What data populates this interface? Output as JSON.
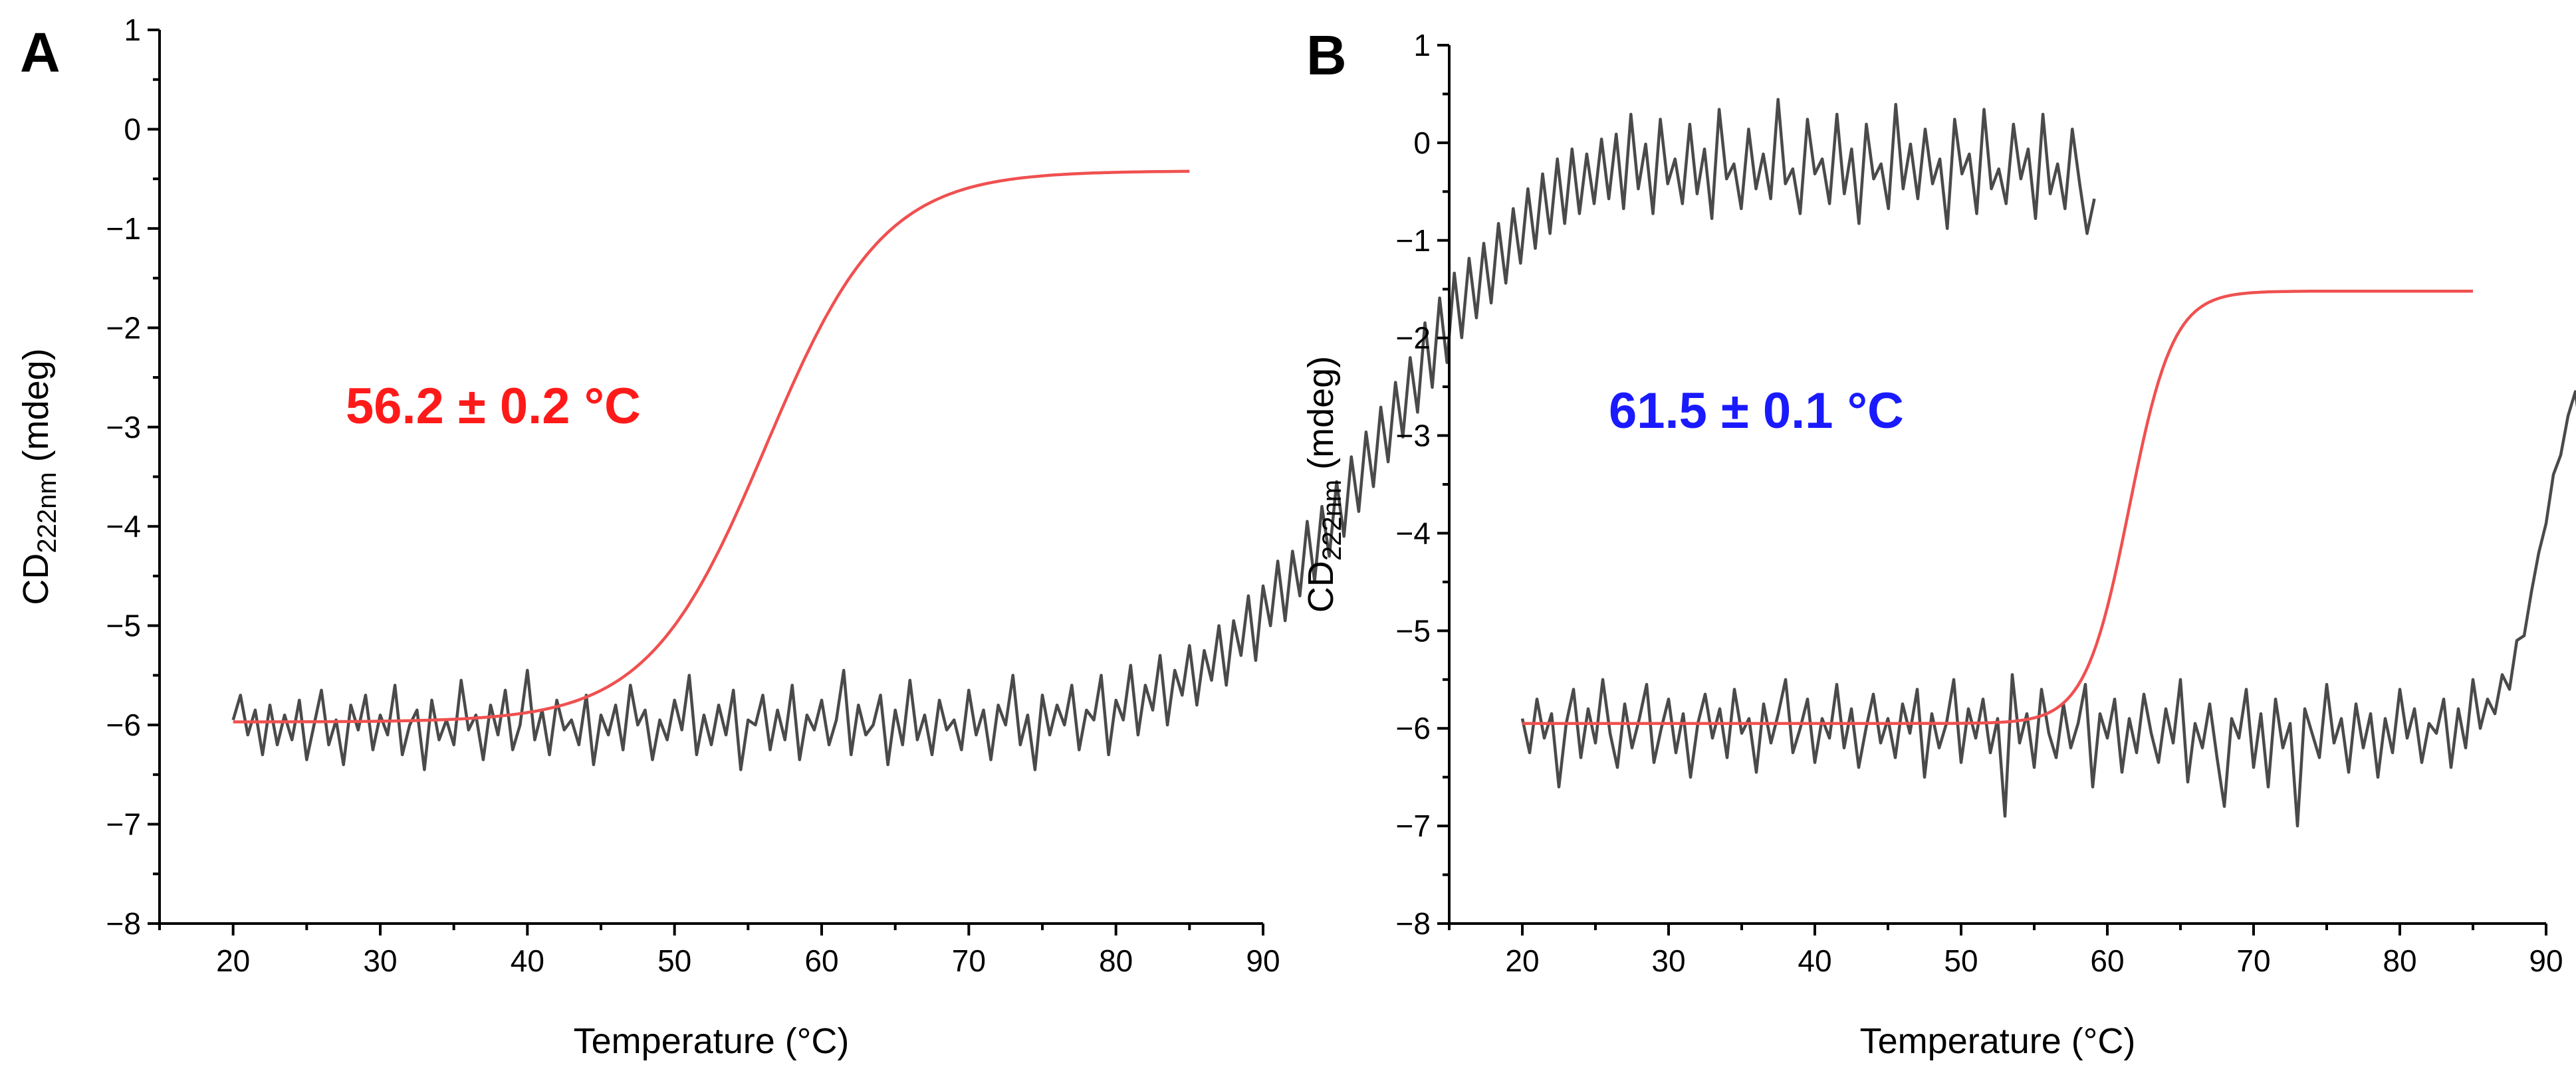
{
  "chart_data": [
    {
      "panel": "A",
      "type": "line",
      "xlabel": "Temperature (°C)",
      "ylabel_main": "CD",
      "ylabel_sub": "222nm",
      "ylabel_unit": " (mdeg)",
      "xlim": [
        15,
        90
      ],
      "ylim": [
        -8,
        1
      ],
      "xticks": [
        20,
        30,
        40,
        50,
        60,
        70,
        80,
        90
      ],
      "yticks": [
        1,
        0,
        -1,
        -2,
        -3,
        -4,
        -5,
        -6,
        -7,
        -8
      ],
      "ytick_labels": [
        "1",
        "0",
        "−1",
        "−2",
        "−3",
        "−4",
        "−5",
        "−6",
        "−7",
        "−8"
      ],
      "xtick_labels": [
        "20",
        "30",
        "40",
        "50",
        "60",
        "70",
        "80",
        "90"
      ],
      "annotation": "56.2 ± 0.2 °C",
      "annotation_color": "#ff1a1a",
      "series": [
        {
          "name": "measured CD",
          "color": "#4a4a4a",
          "x_start": 20,
          "x_step": 0.5,
          "values": [
            -5.95,
            -5.7,
            -6.1,
            -5.85,
            -6.3,
            -5.8,
            -6.2,
            -5.9,
            -6.15,
            -5.75,
            -6.35,
            -6.0,
            -5.65,
            -6.2,
            -5.95,
            -6.4,
            -5.8,
            -6.05,
            -5.7,
            -6.25,
            -5.9,
            -6.1,
            -5.6,
            -6.3,
            -6.0,
            -5.85,
            -6.45,
            -5.75,
            -6.15,
            -5.95,
            -6.2,
            -5.55,
            -6.05,
            -5.9,
            -6.35,
            -5.8,
            -6.1,
            -5.65,
            -6.25,
            -6.0,
            -5.45,
            -6.15,
            -5.85,
            -6.3,
            -5.75,
            -6.05,
            -5.95,
            -6.2,
            -5.7,
            -6.4,
            -5.9,
            -6.1,
            -5.8,
            -6.25,
            -5.6,
            -6.0,
            -5.85,
            -6.35,
            -5.95,
            -6.15,
            -5.75,
            -6.05,
            -5.5,
            -6.3,
            -5.9,
            -6.2,
            -5.8,
            -6.1,
            -5.65,
            -6.45,
            -5.95,
            -6.0,
            -5.7,
            -6.25,
            -5.85,
            -6.15,
            -5.6,
            -6.35,
            -5.9,
            -6.05,
            -5.75,
            -6.2,
            -5.95,
            -5.45,
            -6.3,
            -5.8,
            -6.1,
            -6.0,
            -5.7,
            -6.4,
            -5.85,
            -6.2,
            -5.55,
            -6.15,
            -5.9,
            -6.3,
            -5.75,
            -6.05,
            -5.95,
            -6.25,
            -5.65,
            -6.1,
            -5.85,
            -6.35,
            -5.8,
            -6.0,
            -5.5,
            -6.2,
            -5.9,
            -6.45,
            -5.7,
            -6.1,
            -5.8,
            -6.0,
            -5.6,
            -6.25,
            -5.85,
            -5.95,
            -5.5,
            -6.3,
            -5.75,
            -5.95,
            -5.4,
            -6.1,
            -5.6,
            -5.85,
            -5.3,
            -6.0,
            -5.45,
            -5.7,
            -5.2,
            -5.8,
            -5.25,
            -5.55,
            -5.0,
            -5.6,
            -4.95,
            -5.3,
            -4.7,
            -5.35,
            -4.6,
            -5.0,
            -4.35,
            -4.95,
            -4.25,
            -4.7,
            -3.95,
            -4.55,
            -3.8,
            -4.3,
            -3.55,
            -4.1,
            -3.3,
            -3.85,
            -3.05,
            -3.6,
            -2.8,
            -3.35,
            -2.55,
            -3.1,
            -2.3,
            -2.85,
            -1.95,
            -2.6,
            -1.7,
            -2.35,
            -1.45,
            -2.1,
            -1.3,
            -1.9,
            -1.15,
            -1.75,
            -0.95,
            -1.55,
            -0.8,
            -1.35,
            -0.6,
            -1.2,
            -0.45,
            -1.05,
            -0.3,
            -0.95,
            -0.2,
            -0.85,
            -0.25,
            -0.75,
            -0.1,
            -0.7,
            -0.05,
            -0.8,
            0.15,
            -0.6,
            -0.15,
            -0.85,
            0.1,
            -0.55,
            -0.3,
            -0.75,
            0.05,
            -0.65,
            -0.2,
            -0.9,
            0.2,
            -0.5,
            -0.35,
            -0.8,
            0.0,
            -0.6,
            -0.25,
            -0.7,
            0.3,
            -0.55,
            -0.4,
            -0.85,
            0.1,
            -0.45,
            -0.3,
            -0.75,
            0.15,
            -0.65,
            -0.2,
            -0.95,
            0.05,
            -0.5,
            -0.35,
            -0.8,
            0.25,
            -0.6,
            -0.15,
            -0.7,
            0.0,
            -0.55,
            -0.3,
            -1.0,
            0.1,
            -0.45,
            -0.25,
            -0.85,
            0.2,
            -0.6,
            -0.4,
            -0.75,
            0.05,
            -0.5,
            -0.2,
            -0.9,
            0.15,
            -0.65,
            -0.35,
            -0.8,
            0.0,
            -0.55,
            -1.05,
            -0.7
          ]
        },
        {
          "name": "sigmoidal fit",
          "color": "#f05050",
          "fit": {
            "bottom": -5.97,
            "top": -0.42,
            "tm": 56.2,
            "slope": 4.0,
            "x_start": 20,
            "x_end": 85
          }
        }
      ]
    },
    {
      "panel": "B",
      "type": "line",
      "xlabel": "Temperature (°C)",
      "ylabel_main": "CD",
      "ylabel_sub": "222nm",
      "ylabel_unit": " (mdeg)",
      "xlim": [
        15,
        90
      ],
      "ylim": [
        -8,
        1
      ],
      "xticks": [
        20,
        30,
        40,
        50,
        60,
        70,
        80,
        90
      ],
      "yticks": [
        1,
        0,
        -1,
        -2,
        -3,
        -4,
        -5,
        -6,
        -7,
        -8
      ],
      "ytick_labels": [
        "1",
        "0",
        "−1",
        "−2",
        "−3",
        "−4",
        "−5",
        "−6",
        "−7",
        "−8"
      ],
      "xtick_labels": [
        "20",
        "30",
        "40",
        "50",
        "60",
        "70",
        "80",
        "90"
      ],
      "annotation": "61.5 ± 0.1 °C",
      "annotation_color": "#1a1aff",
      "series": [
        {
          "name": "measured CD",
          "color": "#4a4a4a",
          "x_start": 20,
          "x_step": 0.5,
          "values": [
            -5.9,
            -6.25,
            -5.7,
            -6.1,
            -5.85,
            -6.6,
            -5.95,
            -5.6,
            -6.3,
            -5.8,
            -6.15,
            -5.5,
            -6.05,
            -6.4,
            -5.75,
            -6.2,
            -5.9,
            -5.55,
            -6.35,
            -6.0,
            -5.7,
            -6.25,
            -5.85,
            -6.5,
            -5.95,
            -5.65,
            -6.1,
            -5.8,
            -6.3,
            -5.6,
            -6.05,
            -5.9,
            -6.45,
            -5.75,
            -6.15,
            -5.85,
            -5.5,
            -6.25,
            -6.0,
            -5.7,
            -6.35,
            -5.9,
            -6.1,
            -5.55,
            -6.2,
            -5.8,
            -6.4,
            -6.0,
            -5.65,
            -6.15,
            -5.9,
            -6.3,
            -5.75,
            -6.05,
            -5.6,
            -6.5,
            -5.85,
            -6.2,
            -5.95,
            -5.5,
            -6.35,
            -5.8,
            -6.1,
            -5.7,
            -6.25,
            -5.9,
            -6.9,
            -5.45,
            -6.15,
            -5.85,
            -6.4,
            -5.6,
            -6.05,
            -6.3,
            -5.75,
            -6.2,
            -5.95,
            -5.55,
            -6.6,
            -5.85,
            -6.1,
            -5.7,
            -6.45,
            -5.9,
            -6.25,
            -5.65,
            -6.05,
            -6.35,
            -5.8,
            -6.15,
            -5.5,
            -6.55,
            -5.95,
            -6.2,
            -5.75,
            -6.3,
            -6.8,
            -5.9,
            -6.1,
            -5.6,
            -6.4,
            -5.85,
            -6.6,
            -5.7,
            -6.2,
            -5.95,
            -7.0,
            -5.8,
            -6.05,
            -6.3,
            -5.55,
            -6.15,
            -5.9,
            -6.45,
            -5.75,
            -6.2,
            -5.85,
            -6.5,
            -5.9,
            -6.25,
            -5.6,
            -6.1,
            -5.8,
            -6.35,
            -5.95,
            -6.05,
            -5.7,
            -6.4,
            -5.8,
            -6.2,
            -5.5,
            -6.0,
            -5.7,
            -5.85,
            -5.45,
            -5.6,
            -5.1,
            -5.05,
            -4.6,
            -4.2,
            -3.9,
            -3.4,
            -3.2,
            -2.8,
            -2.55,
            -3.1,
            -2.2,
            -2.9,
            -2.0,
            -2.6,
            -1.7,
            -2.3,
            -1.65,
            -2.1,
            -1.9,
            -2.2,
            -1.6,
            -2.05,
            -1.75,
            -2.3,
            -1.5,
            -2.0,
            -1.8,
            -1.45,
            -2.15,
            -1.6,
            -1.9,
            -2.6,
            -1.35,
            -1.7,
            -2.0,
            -1.25,
            -1.85,
            -1.55,
            -2.25,
            -1.4,
            -1.75,
            -1.2,
            -2.0,
            -1.6,
            -1.3,
            -1.9,
            -2.8,
            -1.45,
            -1.7,
            -0.85,
            -1.95,
            -1.55,
            -1.25,
            -2.1,
            -1.4,
            -0.75,
            -1.8,
            -1.6,
            -1.1,
            -2.0,
            -1.35,
            -0.95,
            -1.7,
            -1.5,
            -1.2,
            -2.2,
            -1.55,
            -1.0,
            -1.85,
            -1.3,
            -0.8,
            -1.75,
            -1.45,
            -1.15,
            -2.1,
            -1.35,
            -0.9,
            -1.65,
            -1.55,
            -1.05,
            -1.95,
            -1.4,
            -0.85,
            -1.8,
            -1.25,
            -1.6,
            -1.1,
            -1.9,
            -1.45,
            -0.95,
            -1.7,
            -1.3,
            -1.55,
            -1.0,
            -1.85,
            -1.4,
            -1.15,
            -1.75,
            -1.35,
            -1.5,
            -1.05,
            -1.8,
            -1.25,
            -1.6,
            -1.4,
            -1.25
          ]
        },
        {
          "name": "sigmoidal fit",
          "color": "#f05050",
          "fit": {
            "bottom": -5.95,
            "top": -1.52,
            "tm": 61.5,
            "slope": 1.5,
            "x_start": 20,
            "x_end": 85
          }
        }
      ]
    }
  ]
}
